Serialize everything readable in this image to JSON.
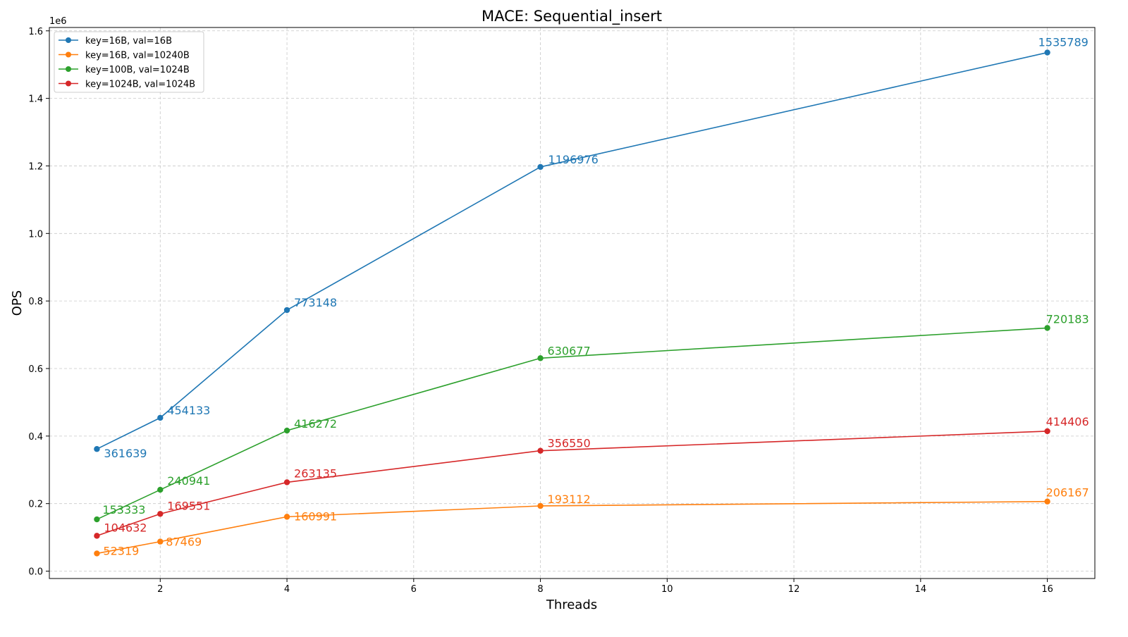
{
  "chart_data": {
    "type": "line",
    "title": "MACE: Sequential_insert",
    "xlabel": "Threads",
    "ylabel": "OPS",
    "y_offset_label": "1e6",
    "x": [
      1,
      2,
      4,
      8,
      16
    ],
    "xlim": [
      0.25,
      16.75
    ],
    "ylim": [
      -21854,
      1609962
    ],
    "xticks": [
      2,
      4,
      6,
      8,
      10,
      12,
      14,
      16
    ],
    "yticks": [
      0,
      200000,
      400000,
      600000,
      800000,
      1000000,
      1200000,
      1400000,
      1600000
    ],
    "ytick_labels": [
      "0.0",
      "0.2",
      "0.4",
      "0.6",
      "0.8",
      "1.0",
      "1.2",
      "1.4",
      "1.6"
    ],
    "grid": true,
    "legend_placement": "top-left",
    "series": [
      {
        "name": "key=16B, val=16B",
        "color": "#1f77b4",
        "values": [
          361639,
          454133,
          773148,
          1196976,
          1535789
        ]
      },
      {
        "name": "key=16B, val=10240B",
        "color": "#ff7f0e",
        "values": [
          52319,
          87469,
          160991,
          193112,
          206167
        ]
      },
      {
        "name": "key=100B, val=1024B",
        "color": "#2ca02c",
        "values": [
          153333,
          240941,
          416272,
          630677,
          720183
        ]
      },
      {
        "name": "key=1024B, val=1024B",
        "color": "#d62728",
        "values": [
          104632,
          169551,
          263135,
          356550,
          414406
        ]
      }
    ]
  }
}
